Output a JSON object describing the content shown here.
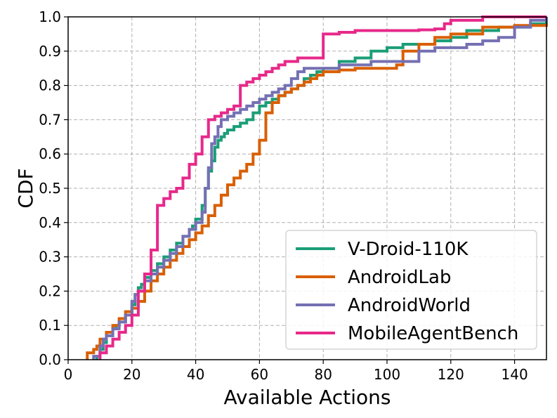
{
  "chart_data": {
    "type": "line",
    "step": true,
    "xlabel": "Available Actions",
    "ylabel": "CDF",
    "xlim": [
      0,
      150
    ],
    "ylim": [
      0,
      1.0
    ],
    "xticks": [
      0,
      20,
      40,
      60,
      80,
      100,
      120,
      140
    ],
    "yticks": [
      0.0,
      0.1,
      0.2,
      0.3,
      0.4,
      0.5,
      0.6,
      0.7,
      0.8,
      0.9,
      1.0
    ],
    "xtick_labels": [
      "0",
      "20",
      "40",
      "60",
      "80",
      "100",
      "120",
      "140"
    ],
    "ytick_labels": [
      "0.0",
      "0.1",
      "0.2",
      "0.3",
      "0.4",
      "0.5",
      "0.6",
      "0.7",
      "0.8",
      "0.9",
      "1.0"
    ],
    "grid": true,
    "legend_position": "lower-right",
    "series": [
      {
        "name": "V-Droid-110K",
        "color": "#1b9e77",
        "x": [
          9,
          10,
          11,
          12,
          14,
          15,
          16,
          18,
          20,
          21,
          22,
          23,
          24,
          26,
          28,
          30,
          32,
          34,
          36,
          38,
          39,
          40,
          42,
          43,
          44,
          45,
          46,
          47,
          48,
          49,
          50,
          52,
          54,
          56,
          58,
          60,
          62,
          64,
          66,
          68,
          70,
          72,
          74,
          76,
          78,
          80,
          85,
          90,
          95,
          100,
          105,
          110,
          115,
          120,
          125,
          130,
          135,
          140,
          145,
          150
        ],
        "y": [
          0.01,
          0.03,
          0.05,
          0.07,
          0.09,
          0.1,
          0.11,
          0.13,
          0.16,
          0.19,
          0.21,
          0.22,
          0.24,
          0.26,
          0.28,
          0.3,
          0.32,
          0.34,
          0.36,
          0.38,
          0.39,
          0.41,
          0.45,
          0.5,
          0.55,
          0.58,
          0.62,
          0.64,
          0.65,
          0.66,
          0.67,
          0.68,
          0.69,
          0.7,
          0.72,
          0.74,
          0.75,
          0.76,
          0.77,
          0.78,
          0.79,
          0.8,
          0.82,
          0.83,
          0.84,
          0.85,
          0.87,
          0.88,
          0.9,
          0.91,
          0.92,
          0.92,
          0.93,
          0.94,
          0.96,
          0.96,
          0.97,
          0.97,
          0.98,
          0.99
        ]
      },
      {
        "name": "AndroidLab",
        "color": "#d95f02",
        "x": [
          6,
          8,
          9,
          10,
          12,
          14,
          16,
          18,
          20,
          22,
          24,
          26,
          28,
          30,
          32,
          34,
          36,
          38,
          40,
          42,
          44,
          46,
          48,
          50,
          52,
          54,
          56,
          58,
          60,
          62,
          64,
          66,
          68,
          70,
          72,
          74,
          76,
          78,
          80,
          85,
          90,
          95,
          100,
          103,
          105,
          110,
          115,
          120,
          130,
          140,
          150
        ],
        "y": [
          0.02,
          0.03,
          0.04,
          0.06,
          0.08,
          0.1,
          0.12,
          0.14,
          0.15,
          0.17,
          0.2,
          0.23,
          0.25,
          0.27,
          0.29,
          0.31,
          0.33,
          0.35,
          0.37,
          0.39,
          0.42,
          0.45,
          0.48,
          0.51,
          0.53,
          0.55,
          0.57,
          0.6,
          0.64,
          0.72,
          0.75,
          0.77,
          0.78,
          0.79,
          0.8,
          0.81,
          0.82,
          0.83,
          0.84,
          0.845,
          0.85,
          0.85,
          0.85,
          0.86,
          0.9,
          0.92,
          0.94,
          0.95,
          0.97,
          0.975,
          0.98
        ]
      },
      {
        "name": "AndroidWorld",
        "color": "#7570b3",
        "x": [
          8,
          10,
          11,
          12,
          14,
          16,
          18,
          20,
          21,
          22,
          24,
          26,
          28,
          30,
          32,
          34,
          36,
          38,
          40,
          42,
          43,
          44,
          45,
          46,
          47,
          48,
          50,
          52,
          54,
          56,
          58,
          60,
          62,
          64,
          66,
          68,
          70,
          72,
          74,
          76,
          78,
          80,
          85,
          90,
          95,
          100,
          105,
          110,
          115,
          120,
          125,
          130,
          135,
          140,
          145,
          150
        ],
        "y": [
          0.01,
          0.04,
          0.06,
          0.07,
          0.09,
          0.11,
          0.13,
          0.17,
          0.19,
          0.2,
          0.23,
          0.25,
          0.27,
          0.29,
          0.31,
          0.33,
          0.36,
          0.38,
          0.4,
          0.43,
          0.5,
          0.56,
          0.63,
          0.65,
          0.68,
          0.7,
          0.71,
          0.72,
          0.73,
          0.74,
          0.75,
          0.76,
          0.77,
          0.78,
          0.79,
          0.8,
          0.82,
          0.84,
          0.85,
          0.85,
          0.85,
          0.85,
          0.86,
          0.86,
          0.87,
          0.87,
          0.87,
          0.9,
          0.91,
          0.91,
          0.92,
          0.93,
          0.94,
          0.97,
          0.99,
          1.0
        ]
      },
      {
        "name": "MobileAgentBench",
        "color": "#e7298a",
        "x": [
          10,
          12,
          14,
          16,
          18,
          20,
          22,
          24,
          26,
          28,
          30,
          32,
          34,
          36,
          38,
          40,
          42,
          44,
          46,
          48,
          50,
          52,
          54,
          56,
          58,
          60,
          62,
          64,
          66,
          68,
          70,
          72,
          74,
          76,
          78,
          80,
          85,
          90,
          95,
          100,
          105,
          110,
          115,
          118,
          120,
          130,
          140,
          150
        ],
        "y": [
          0.02,
          0.04,
          0.06,
          0.08,
          0.1,
          0.13,
          0.2,
          0.25,
          0.32,
          0.45,
          0.47,
          0.49,
          0.5,
          0.53,
          0.57,
          0.6,
          0.65,
          0.7,
          0.71,
          0.72,
          0.73,
          0.74,
          0.8,
          0.81,
          0.82,
          0.83,
          0.84,
          0.85,
          0.86,
          0.87,
          0.87,
          0.88,
          0.88,
          0.88,
          0.88,
          0.95,
          0.955,
          0.96,
          0.96,
          0.96,
          0.96,
          0.962,
          0.965,
          0.98,
          0.99,
          1.0,
          1.0,
          1.0
        ]
      }
    ]
  }
}
